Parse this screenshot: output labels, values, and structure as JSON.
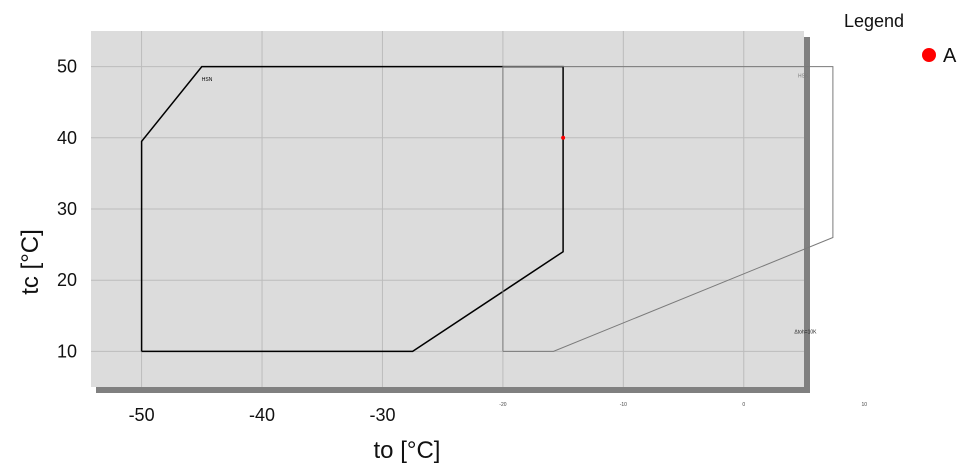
{
  "chart_data": {
    "type": "line",
    "xlabel": "to [°C]",
    "ylabel": "tc [°C]",
    "xlim": [
      -54.2,
      5.0
    ],
    "ylim": [
      5.0,
      55.0
    ],
    "x_ticks": [
      -50,
      -40,
      -30
    ],
    "y_ticks": [
      10,
      20,
      30,
      40,
      50
    ],
    "x_ticks_secondary": [
      -20,
      -10,
      0,
      10
    ],
    "grid": true,
    "legend": {
      "title": "Legend",
      "placement": "top-right",
      "entries": [
        "A"
      ]
    },
    "colors": {
      "plot_bg": "#dcdcdc",
      "shadow": "#808080",
      "grid": "#bcbcbc",
      "hsn": "#000000",
      "hsk": "#7a7a7a",
      "point": "#ff0000"
    },
    "regions": [
      {
        "label": "HSN",
        "color": "#000000",
        "x": [
          -50,
          -50,
          -45,
          -15,
          -15,
          -27.5,
          -50
        ],
        "y": [
          10,
          39.5,
          50,
          50,
          24,
          10,
          10
        ],
        "label_at": [
          -45,
          48
        ]
      },
      {
        "label": "HSK",
        "color": "#7a7a7a",
        "x": [
          -20,
          -20,
          7.4,
          7.4,
          -15.8,
          -20
        ],
        "y": [
          10,
          50,
          50,
          26,
          10,
          10
        ],
        "label_at": [
          4.5,
          48.5
        ]
      }
    ],
    "annotations": [
      {
        "text": "Δtoh=10K",
        "x": 4.2,
        "y": 12.5
      }
    ],
    "points": [
      {
        "name": "A",
        "x": -15,
        "y": 40
      }
    ]
  }
}
